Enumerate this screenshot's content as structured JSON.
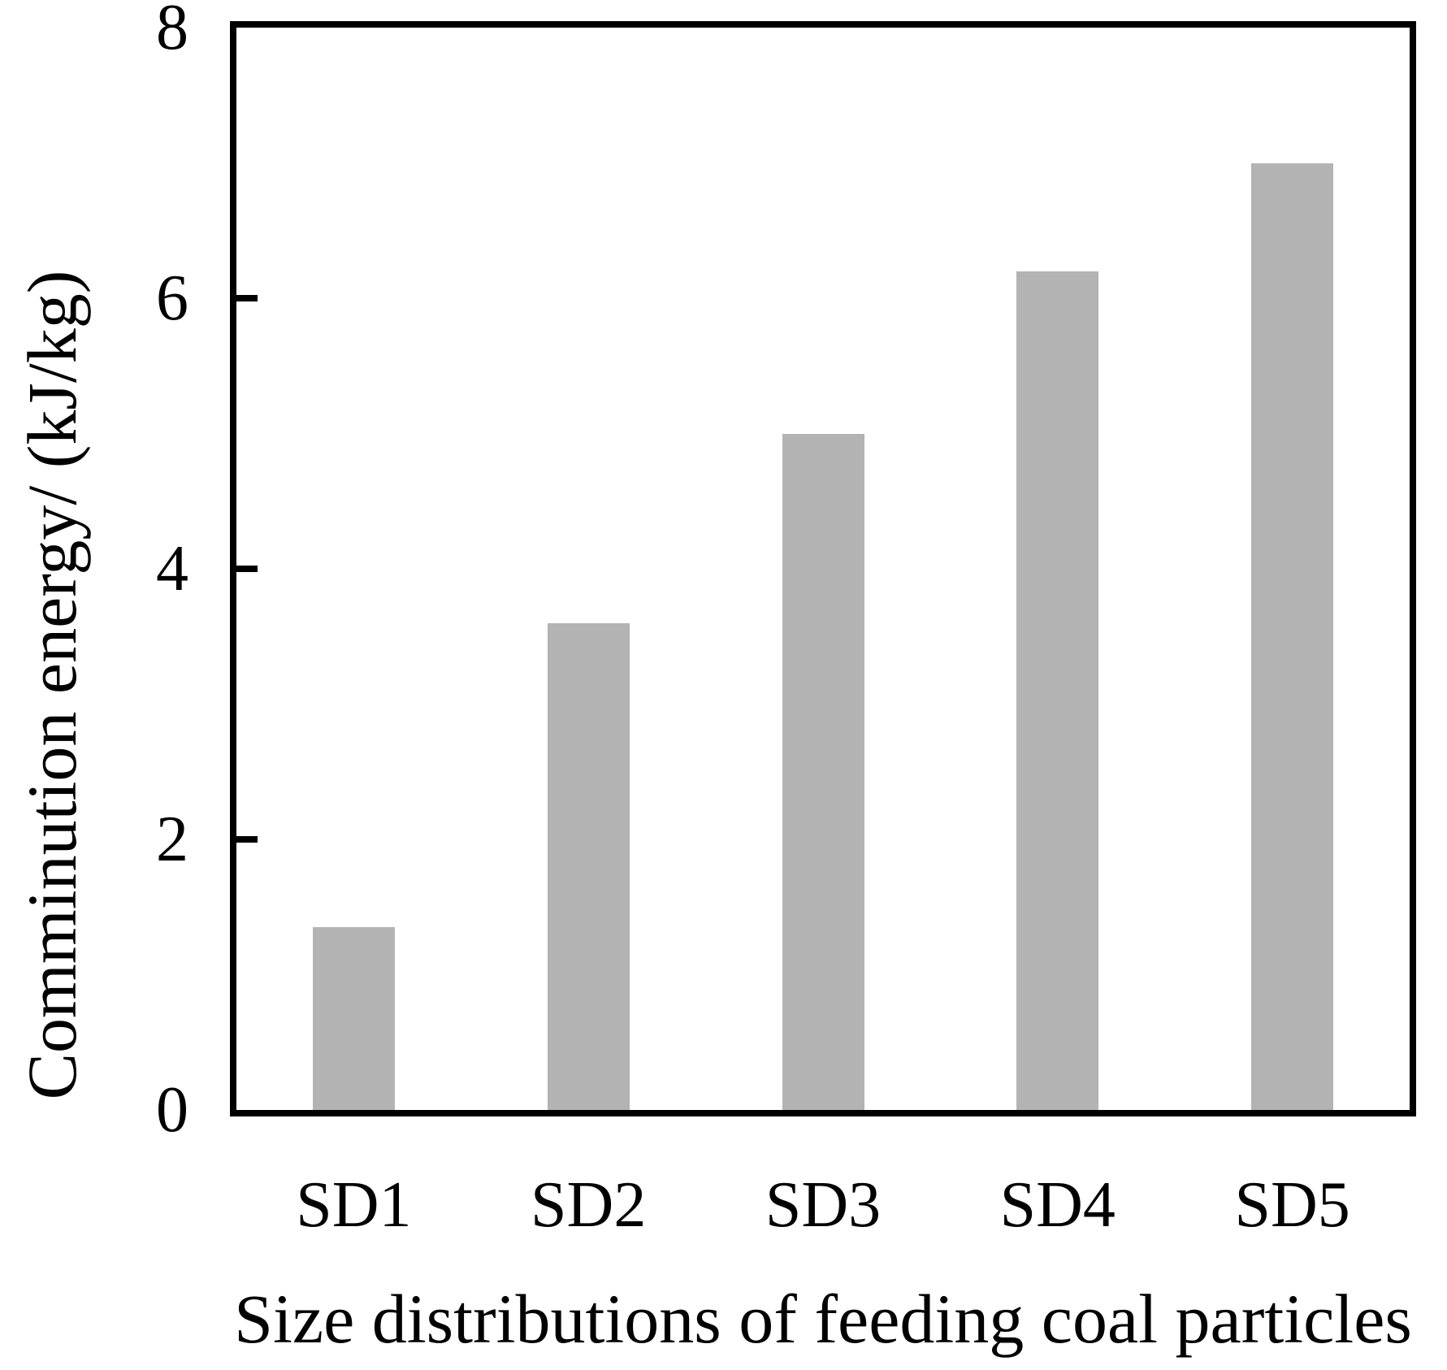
{
  "chart_data": {
    "type": "bar",
    "title": "",
    "categories": [
      "SD1",
      "SD2",
      "SD3",
      "SD4",
      "SD5"
    ],
    "values": [
      1.35,
      3.6,
      5.0,
      6.2,
      7.0
    ],
    "xlabel": "Size distributions of feeding coal particles",
    "ylabel": "Comminution energy/ (kJ/kg)",
    "ylim": [
      0,
      8
    ],
    "yticks": [
      0,
      2,
      4,
      6,
      8
    ],
    "ytick_labels": [
      "0",
      "2",
      "4",
      "6",
      "8"
    ],
    "grid": "off",
    "legend": "none",
    "bar_color": "#b3b3b3",
    "axis_color": "#000000",
    "background_color": "#ffffff"
  }
}
